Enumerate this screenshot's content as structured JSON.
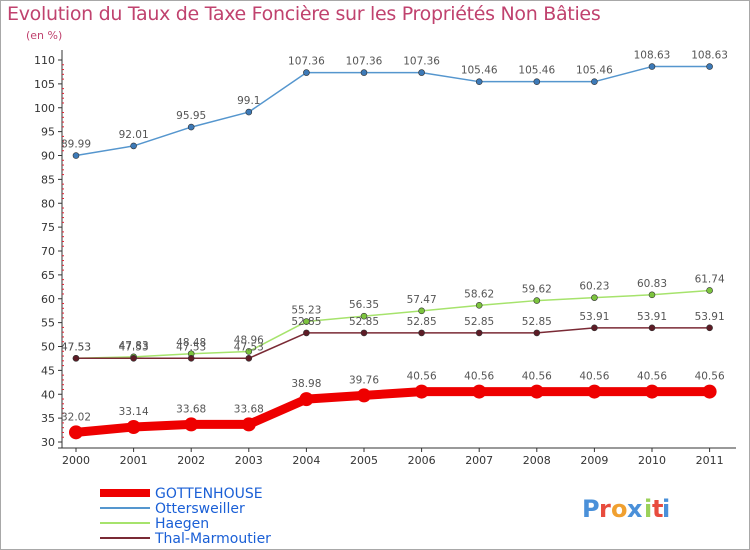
{
  "chart_data": {
    "type": "line",
    "title": "Evolution du Taux de Taxe Foncière sur les Propriétés Non Bâties",
    "ylabel": "(en %)",
    "xlabel": "",
    "ylim": [
      30,
      110
    ],
    "yticks": [
      30,
      35,
      40,
      45,
      50,
      55,
      60,
      65,
      70,
      75,
      80,
      85,
      90,
      95,
      100,
      105,
      110
    ],
    "categories": [
      "2000",
      "2001",
      "2002",
      "2003",
      "2004",
      "2005",
      "2006",
      "2007",
      "2008",
      "2009",
      "2010",
      "2011"
    ],
    "series": [
      {
        "name": "Ottersweiller",
        "color": "#5596ce",
        "marker": "#3d7ab8",
        "width": 1.5,
        "values": [
          89.99,
          92.01,
          95.95,
          99.1,
          107.36,
          107.36,
          107.36,
          105.46,
          105.46,
          105.46,
          108.63,
          108.63
        ],
        "labels": [
          "89.99",
          "92.01",
          "95.95",
          "99.1",
          "107.36",
          "107.36",
          "107.36",
          "105.46",
          "105.46",
          "105.46",
          "108.63",
          "108.63"
        ]
      },
      {
        "name": "Haegen",
        "color": "#a6e36c",
        "marker": "#7cc43e",
        "width": 1.5,
        "values": [
          47.53,
          47.83,
          48.48,
          48.96,
          55.23,
          56.35,
          57.47,
          58.62,
          59.62,
          60.23,
          60.83,
          61.74
        ],
        "labels": [
          "47.53",
          "47.83",
          "48.48",
          "48.96",
          "55.23",
          "56.35",
          "57.47",
          "58.62",
          "59.62",
          "60.23",
          "60.83",
          "61.74"
        ]
      },
      {
        "name": "Thal-Marmoutier",
        "color": "#7a2a35",
        "marker": "#5e1c26",
        "width": 1.5,
        "values": [
          47.53,
          47.53,
          47.53,
          47.53,
          52.85,
          52.85,
          52.85,
          52.85,
          52.85,
          53.91,
          53.91,
          53.91
        ],
        "labels": [
          "47.53",
          "47.53",
          "47.53",
          "47.53",
          "52.85",
          "52.85",
          "52.85",
          "52.85",
          "52.85",
          "53.91",
          "53.91",
          "53.91"
        ]
      },
      {
        "name": "GOTTENHOUSE",
        "color": "#ee0000",
        "marker": "#ee0000",
        "width": 9,
        "values": [
          32.02,
          33.14,
          33.68,
          33.68,
          38.98,
          39.76,
          40.56,
          40.56,
          40.56,
          40.56,
          40.56,
          40.56
        ],
        "labels": [
          "32.02",
          "33.14",
          "33.68",
          "33.68",
          "38.98",
          "39.76",
          "40.56",
          "40.56",
          "40.56",
          "40.56",
          "40.56",
          "40.56"
        ]
      }
    ],
    "legend": [
      {
        "name": "GOTTENHOUSE",
        "color": "#ee0000",
        "text_color": "#1a5fd6",
        "thick": true
      },
      {
        "name": "Ottersweiller",
        "color": "#5596ce",
        "text_color": "#1a5fd6",
        "thick": false
      },
      {
        "name": "Haegen",
        "color": "#a6e36c",
        "text_color": "#1a5fd6",
        "thick": false
      },
      {
        "name": "Thal-Marmoutier",
        "color": "#7a2a35",
        "text_color": "#1a5fd6",
        "thick": false
      }
    ],
    "grid": false,
    "legend_position": "bottom-left"
  },
  "brand": {
    "letters": [
      "P",
      "r",
      "o",
      "x",
      "i",
      "t",
      "i"
    ],
    "colors": [
      "#4a90d9",
      "#e84c3d",
      "#f0a030",
      "#4a90d9",
      "#9bd15a",
      "#e84c3d",
      "#4a90d9"
    ]
  }
}
